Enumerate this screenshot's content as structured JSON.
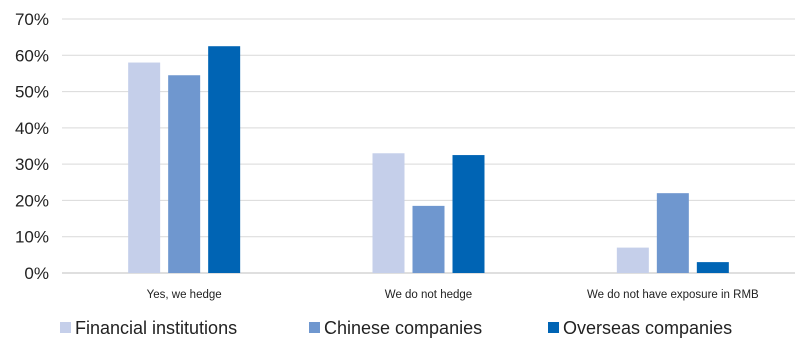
{
  "chart_data": {
    "type": "bar",
    "categories": [
      "Yes, we hedge",
      "We do not hedge",
      "We do not have exposure in RMB"
    ],
    "series": [
      {
        "name": "Financial institutions",
        "values": [
          58,
          33,
          7
        ],
        "color": "#c5cfea"
      },
      {
        "name": "Chinese companies",
        "values": [
          54.5,
          18.5,
          22
        ],
        "color": "#6f97cf"
      },
      {
        "name": "Overseas companies",
        "values": [
          62.5,
          32.5,
          3
        ],
        "color": "#0064b4"
      }
    ],
    "yticks": [
      "0%",
      "10%",
      "20%",
      "30%",
      "40%",
      "50%",
      "60%",
      "70%"
    ],
    "ylim": [
      0,
      70
    ],
    "grid": true,
    "legend": "bottom"
  }
}
